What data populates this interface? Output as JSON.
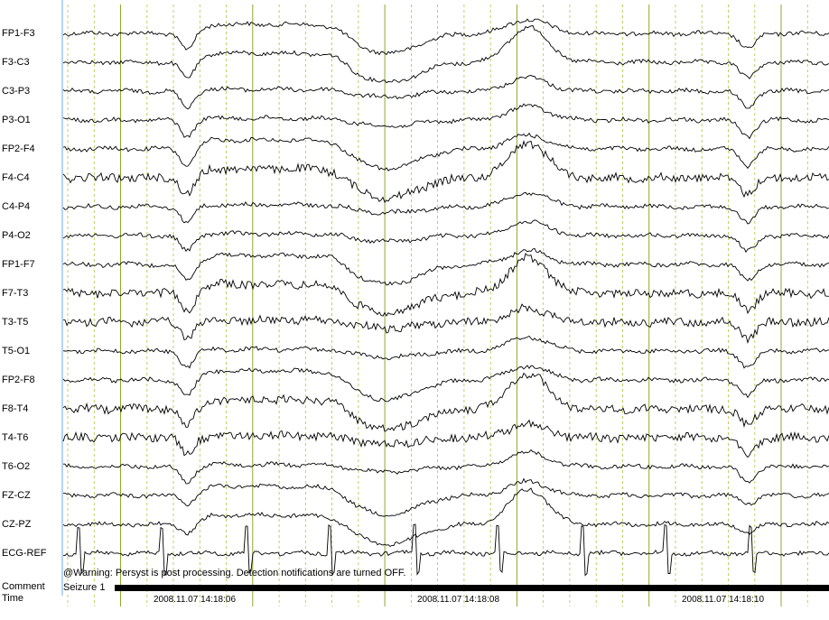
{
  "channels": [
    {
      "label": "FP1-F3"
    },
    {
      "label": "F3-C3"
    },
    {
      "label": "C3-P3"
    },
    {
      "label": "P3-O1"
    },
    {
      "label": "FP2-F4"
    },
    {
      "label": "F4-C4"
    },
    {
      "label": "C4-P4"
    },
    {
      "label": "P4-O2"
    },
    {
      "label": "FP1-F7"
    },
    {
      "label": "F7-T3"
    },
    {
      "label": "T3-T5"
    },
    {
      "label": "T5-O1"
    },
    {
      "label": "FP2-F8"
    },
    {
      "label": "F8-T4"
    },
    {
      "label": "T4-T6"
    },
    {
      "label": "T6-O2"
    },
    {
      "label": "FZ-CZ"
    },
    {
      "label": "CZ-PZ"
    },
    {
      "label": "ECG-REF"
    }
  ],
  "rows": {
    "comment_label": "Comment",
    "time_label": "Time"
  },
  "comment": "@Warning: Persyst is post processing. Detection notifications are turned OFF.",
  "seizure_label": "Seizure 1",
  "timestamps": [
    "2008.11.07 14:18:06",
    "2008.11.07 14:18:08",
    "2008.11.07 14:18:10"
  ],
  "colors": {
    "trace": "#000000",
    "second_gridline": "#8cab2a",
    "subsecond_gridline": "#b3c23a",
    "left_border": "#6fa8dc",
    "seizure_bar": "#000000"
  }
}
